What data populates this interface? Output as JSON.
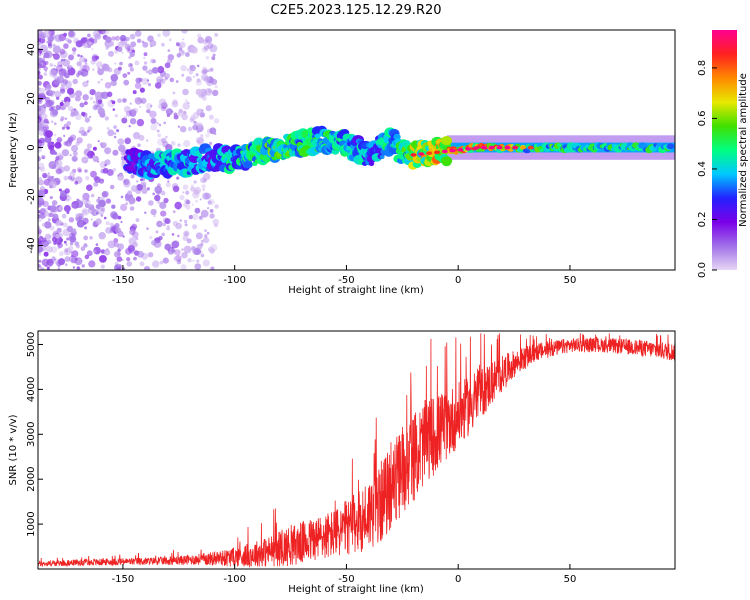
{
  "title": "C2E5.2023.125.12.29.R20",
  "chart_data": [
    {
      "type": "heatmap",
      "name": "spectrogram",
      "xlabel": "Height of straight line (km)",
      "ylabel": "Frequency (Hz)",
      "xlim": [
        -188,
        97
      ],
      "ylim": [
        -50,
        48
      ],
      "xticks": [
        -150,
        -100,
        -50,
        0,
        50
      ],
      "yticks": [
        -40,
        -20,
        0,
        20,
        40
      ],
      "xtick_labels": [
        "-150",
        "-100",
        "-50",
        "0",
        "50"
      ],
      "ytick_labels": [
        "-40",
        "-20",
        "0",
        "20",
        "40"
      ],
      "colorbar": {
        "label": "Normalized spectral amplitude",
        "range": [
          0.0,
          0.95
        ],
        "ticks": [
          0.0,
          0.2,
          0.4,
          0.6,
          0.8
        ],
        "tick_labels": [
          "0.0",
          "0.2",
          "0.4",
          "0.6",
          "0.8"
        ],
        "colors": [
          "#e6d6f5",
          "#a070e8",
          "#7a00e8",
          "#2222ff",
          "#00c8ff",
          "#00ff80",
          "#40e000",
          "#e8e800",
          "#ff8800",
          "#ff2020",
          "#ff0090"
        ]
      },
      "ridge": {
        "x": [
          -148,
          -140,
          -130,
          -120,
          -110,
          -100,
          -90,
          -80,
          -70,
          -60,
          -50,
          -45,
          -40,
          -35,
          -30,
          -25,
          -20,
          -10,
          0,
          10,
          20,
          30,
          50,
          70,
          95
        ],
        "freq": [
          -6,
          -7,
          -7,
          -6,
          -4,
          -5,
          -2,
          0,
          2,
          3,
          2,
          -1,
          -3,
          0,
          3,
          -2,
          -3,
          -2,
          -1,
          0,
          0,
          0,
          0,
          0,
          0
        ],
        "amplitude": [
          0.3,
          0.35,
          0.4,
          0.4,
          0.35,
          0.45,
          0.5,
          0.55,
          0.5,
          0.5,
          0.45,
          0.4,
          0.4,
          0.4,
          0.45,
          0.5,
          0.6,
          0.7,
          0.8,
          0.8,
          0.75,
          0.55,
          0.5,
          0.5,
          0.5
        ]
      }
    },
    {
      "type": "line",
      "name": "snr",
      "xlabel": "Height of straight line (km)",
      "ylabel": "SNR (10 * v/v)",
      "xlim": [
        -188,
        97
      ],
      "ylim": [
        0,
        5300
      ],
      "xticks": [
        -150,
        -100,
        -50,
        0,
        50
      ],
      "yticks": [
        1000,
        2000,
        3000,
        4000,
        5000
      ],
      "xtick_labels": [
        "-150",
        "-100",
        "-50",
        "0",
        "50"
      ],
      "ytick_labels": [
        "1000",
        "2000",
        "3000",
        "4000",
        "5000"
      ],
      "color": "#ee2222",
      "series": [
        {
          "name": "SNR",
          "x": [
            -188,
            -170,
            -150,
            -130,
            -115,
            -105,
            -95,
            -85,
            -75,
            -65,
            -55,
            -45,
            -35,
            -25,
            -15,
            -5,
            5,
            15,
            25,
            35,
            50,
            65,
            80,
            97
          ],
          "y": [
            120,
            150,
            170,
            190,
            230,
            260,
            320,
            420,
            560,
            700,
            850,
            1100,
            1550,
            2250,
            2900,
            3300,
            3700,
            4200,
            4600,
            4850,
            5000,
            5000,
            4950,
            4850
          ],
          "noise": [
            60,
            70,
            80,
            90,
            130,
            180,
            260,
            350,
            450,
            500,
            550,
            700,
            900,
            1000,
            950,
            800,
            650,
            500,
            300,
            200,
            160,
            160,
            180,
            200
          ]
        }
      ]
    }
  ]
}
